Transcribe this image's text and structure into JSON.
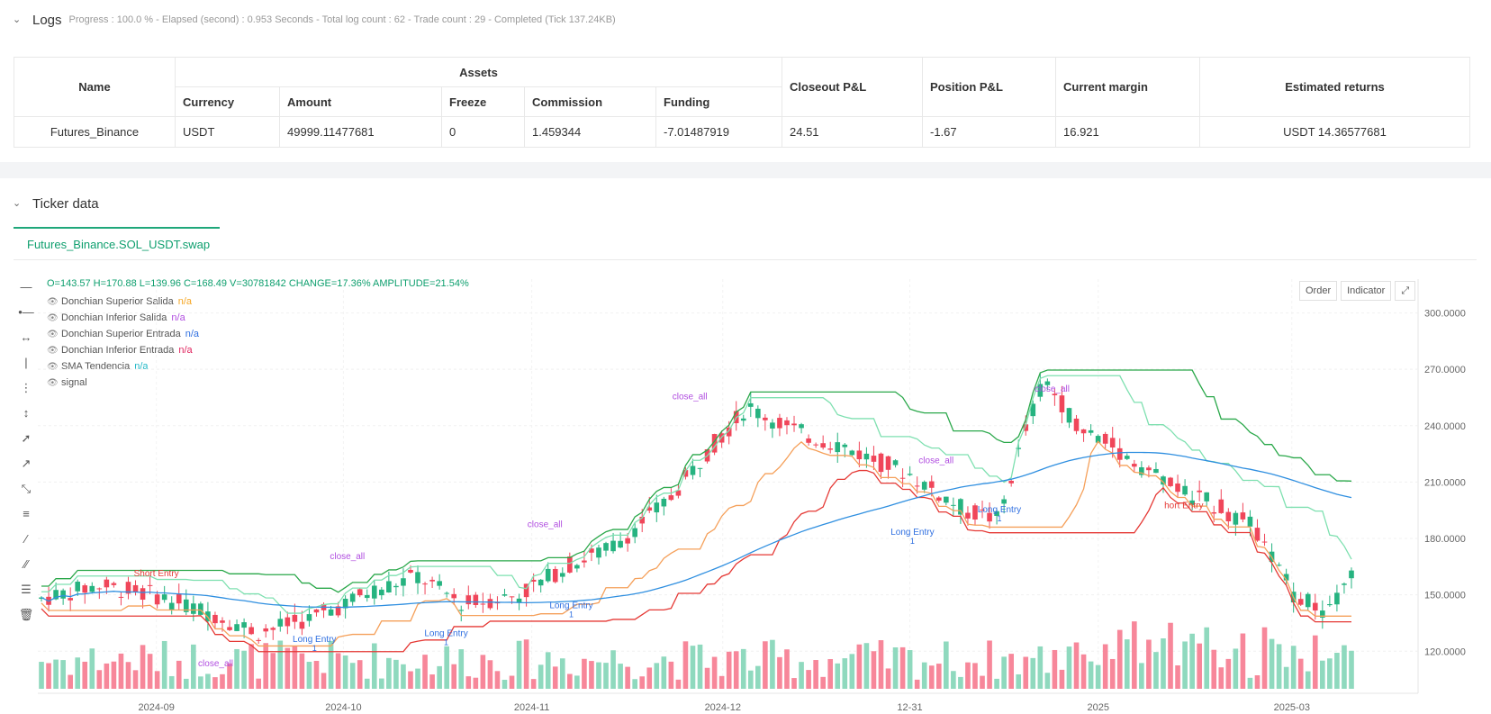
{
  "logs": {
    "title": "Logs",
    "summary": "Progress : 100.0 % - Elapsed (second) : 0.953  Seconds - Total log count : 62 - Trade count : 29 - Completed (Tick 137.24KB)"
  },
  "assets_table": {
    "group_header": "Assets",
    "headers": [
      "Name",
      "Currency",
      "Amount",
      "Freeze",
      "Commission",
      "Funding",
      "Closeout P&L",
      "Position P&L",
      "Current margin",
      "Estimated returns"
    ],
    "row": [
      "Futures_Binance",
      "USDT",
      "49999.11477681",
      "0",
      "1.459344",
      "-7.01487919",
      "24.51",
      "-1.67",
      "16.921",
      "USDT 14.36577681"
    ]
  },
  "ticker": {
    "title": "Ticker data",
    "tab": "Futures_Binance.SOL_USDT.swap"
  },
  "chart_buttons": {
    "order": "Order",
    "indicator": "Indicator"
  },
  "legend": {
    "ohlc": "O=143.57 H=170.88 L=139.96 C=168.49 V=30781842 CHANGE=17.36% AMPLITUDE=21.54%",
    "items": [
      {
        "label": "Donchian Superior Salida",
        "value": "n/a",
        "color": "#f5a623"
      },
      {
        "label": "Donchian Inferior Salida",
        "value": "n/a",
        "color": "#b14ee0"
      },
      {
        "label": "Donchian Superior Entrada",
        "value": "n/a",
        "color": "#2f6fe0"
      },
      {
        "label": "Donchian Inferior Entrada",
        "value": "n/a",
        "color": "#e0245e"
      },
      {
        "label": "SMA Tendencia",
        "value": "n/a",
        "color": "#22b8c7"
      },
      {
        "label": "signal",
        "value": "",
        "color": "#555555"
      }
    ]
  },
  "chart_data": {
    "type": "candlestick",
    "y_ticks": [
      "300.0000",
      "270.0000",
      "240.0000",
      "210.0000",
      "180.0000",
      "150.0000",
      "120.0000"
    ],
    "x_ticks": [
      "2024-09",
      "2024-10",
      "2024-11",
      "2024-12",
      "12-31",
      "2025",
      "2025-03"
    ],
    "ylim": [
      100,
      318
    ],
    "annotations": [
      {
        "text": "Short Entry",
        "x": 0.09,
        "y": 160,
        "color": "#e53935"
      },
      {
        "text": "close_all",
        "x": 0.135,
        "y": 112,
        "color": "#b14ee0"
      },
      {
        "text": "close_all",
        "x": 0.235,
        "y": 169,
        "color": "#b14ee0"
      },
      {
        "text": "Long Entry",
        "x": 0.21,
        "y": 125,
        "sub": "1",
        "color": "#2f6fe0"
      },
      {
        "text": "Long Entry",
        "x": 0.31,
        "y": 128,
        "sub": "1",
        "color": "#2f6fe0"
      },
      {
        "text": "close_all",
        "x": 0.385,
        "y": 186,
        "color": "#b14ee0"
      },
      {
        "text": "Long Entry",
        "x": 0.405,
        "y": 143,
        "sub": "1",
        "color": "#2f6fe0"
      },
      {
        "text": "close_all",
        "x": 0.495,
        "y": 254,
        "color": "#b14ee0"
      },
      {
        "text": "close_all",
        "x": 0.682,
        "y": 220,
        "color": "#b14ee0"
      },
      {
        "text": "Long Entry",
        "x": 0.664,
        "y": 182,
        "sub": "1",
        "color": "#2f6fe0"
      },
      {
        "text": "Long Entry",
        "x": 0.73,
        "y": 194,
        "sub": "1",
        "color": "#2f6fe0"
      },
      {
        "text": "close_all",
        "x": 0.77,
        "y": 258,
        "color": "#b14ee0"
      },
      {
        "text": "hort Entry",
        "x": 0.87,
        "y": 196,
        "color": "#e53935"
      }
    ]
  }
}
